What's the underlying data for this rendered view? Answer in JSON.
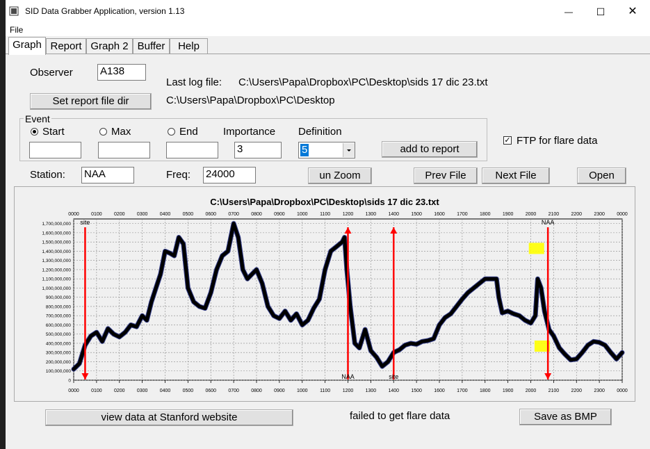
{
  "window": {
    "title": "SID Data Grabber Application, version 1.13",
    "minimize_glyph": "—",
    "maximize_glyph": "☐",
    "close_glyph": "✕",
    "icon": "app-icon"
  },
  "menu": {
    "file": "File"
  },
  "tabs": [
    {
      "label": "Graph",
      "active": true
    },
    {
      "label": "Report"
    },
    {
      "label": "Graph 2"
    },
    {
      "label": "Buffer"
    },
    {
      "label": "Help"
    }
  ],
  "observer": {
    "label": "Observer",
    "value": "A138"
  },
  "log": {
    "label": "Last log file:",
    "path": "C:\\Users\\Papa\\Dropbox\\PC\\Desktop\\sids 17 dic 23.txt",
    "dir": "C:\\Users\\Papa\\Dropbox\\PC\\Desktop"
  },
  "set_report_button": "Set report file dir",
  "event": {
    "legend": "Event",
    "start_label": "Start",
    "max_label": "Max",
    "end_label": "End",
    "importance_label": "Importance",
    "importance_value": "3",
    "definition_label": "Definition",
    "definition_value": "5",
    "add_button": "add to report",
    "selected": "start"
  },
  "ftp": {
    "label": "FTP for flare data",
    "checked": true
  },
  "station": {
    "label": "Station:",
    "value": "NAA"
  },
  "freq": {
    "label": "Freq:",
    "value": "24000"
  },
  "buttons": {
    "unzoom": "un Zoom",
    "prev": "Prev File",
    "next": "Next File",
    "open": "Open",
    "stanford": "view data at Stanford website",
    "save_bmp": "Save as BMP"
  },
  "status": "failed to get flare data",
  "chart_data": {
    "type": "line",
    "title": "C:\\Users\\Papa\\Dropbox\\PC\\Desktop\\sids 17 dic 23.txt",
    "x_ticks": [
      "0000",
      "0100",
      "0200",
      "0300",
      "0400",
      "0500",
      "0600",
      "0700",
      "0800",
      "0900",
      "1000",
      "1100",
      "1200",
      "1300",
      "1400",
      "1500",
      "1600",
      "1700",
      "1800",
      "1900",
      "2000",
      "2100",
      "2200",
      "2300",
      "0000"
    ],
    "y_ticks": [
      "0",
      "100,000,000",
      "200,000,000",
      "300,000,000",
      "400,000,000",
      "500,000,000",
      "600,000,000",
      "700,000,000",
      "800,000,000",
      "900,000,000",
      "1,000,000,000",
      "1,100,000,000",
      "1,200,000,000",
      "1,300,000,000",
      "1,400,000,000",
      "1,500,000,000",
      "1,600,000,000",
      "1,700,000,000"
    ],
    "xlim": [
      0,
      24
    ],
    "ylim": [
      0,
      1750000000
    ],
    "grid": true,
    "series": [
      {
        "color": "#000000",
        "points": [
          [
            0.0,
            120000000
          ],
          [
            0.25,
            180000000
          ],
          [
            0.5,
            380000000
          ],
          [
            0.75,
            480000000
          ],
          [
            1.0,
            520000000
          ],
          [
            1.25,
            420000000
          ],
          [
            1.5,
            560000000
          ],
          [
            1.75,
            500000000
          ],
          [
            2.0,
            470000000
          ],
          [
            2.25,
            520000000
          ],
          [
            2.5,
            600000000
          ],
          [
            2.75,
            580000000
          ],
          [
            3.0,
            700000000
          ],
          [
            3.2,
            650000000
          ],
          [
            3.4,
            850000000
          ],
          [
            3.6,
            1000000000
          ],
          [
            3.8,
            1150000000
          ],
          [
            4.0,
            1400000000
          ],
          [
            4.2,
            1380000000
          ],
          [
            4.4,
            1350000000
          ],
          [
            4.6,
            1550000000
          ],
          [
            4.8,
            1480000000
          ],
          [
            5.0,
            1000000000
          ],
          [
            5.25,
            850000000
          ],
          [
            5.5,
            800000000
          ],
          [
            5.75,
            780000000
          ],
          [
            6.0,
            950000000
          ],
          [
            6.25,
            1200000000
          ],
          [
            6.5,
            1350000000
          ],
          [
            6.75,
            1400000000
          ],
          [
            7.0,
            1700000000
          ],
          [
            7.2,
            1550000000
          ],
          [
            7.4,
            1200000000
          ],
          [
            7.6,
            1100000000
          ],
          [
            7.8,
            1150000000
          ],
          [
            8.0,
            1200000000
          ],
          [
            8.25,
            1050000000
          ],
          [
            8.5,
            800000000
          ],
          [
            8.75,
            700000000
          ],
          [
            9.0,
            670000000
          ],
          [
            9.25,
            750000000
          ],
          [
            9.5,
            650000000
          ],
          [
            9.75,
            720000000
          ],
          [
            10.0,
            600000000
          ],
          [
            10.25,
            650000000
          ],
          [
            10.5,
            780000000
          ],
          [
            10.75,
            880000000
          ],
          [
            11.0,
            1200000000
          ],
          [
            11.25,
            1400000000
          ],
          [
            11.5,
            1450000000
          ],
          [
            11.75,
            1500000000
          ],
          [
            11.85,
            1550000000
          ],
          [
            11.95,
            1200000000
          ],
          [
            12.1,
            800000000
          ],
          [
            12.3,
            400000000
          ],
          [
            12.5,
            350000000
          ],
          [
            12.75,
            550000000
          ],
          [
            13.0,
            320000000
          ],
          [
            13.25,
            250000000
          ],
          [
            13.5,
            150000000
          ],
          [
            13.75,
            200000000
          ],
          [
            14.0,
            300000000
          ],
          [
            14.25,
            330000000
          ],
          [
            14.5,
            380000000
          ],
          [
            14.75,
            400000000
          ],
          [
            15.0,
            390000000
          ],
          [
            15.25,
            420000000
          ],
          [
            15.5,
            430000000
          ],
          [
            15.75,
            450000000
          ],
          [
            16.0,
            600000000
          ],
          [
            16.25,
            680000000
          ],
          [
            16.5,
            720000000
          ],
          [
            16.75,
            800000000
          ],
          [
            17.0,
            880000000
          ],
          [
            17.25,
            950000000
          ],
          [
            17.5,
            1000000000
          ],
          [
            17.75,
            1050000000
          ],
          [
            18.0,
            1100000000
          ],
          [
            18.25,
            1100000000
          ],
          [
            18.5,
            1100000000
          ],
          [
            18.6,
            900000000
          ],
          [
            18.75,
            730000000
          ],
          [
            19.0,
            750000000
          ],
          [
            19.25,
            720000000
          ],
          [
            19.5,
            700000000
          ],
          [
            19.75,
            650000000
          ],
          [
            20.0,
            620000000
          ],
          [
            20.2,
            700000000
          ],
          [
            20.3,
            1100000000
          ],
          [
            20.45,
            1000000000
          ],
          [
            20.6,
            750000000
          ],
          [
            20.8,
            550000000
          ],
          [
            21.0,
            480000000
          ],
          [
            21.25,
            350000000
          ],
          [
            21.5,
            280000000
          ],
          [
            21.75,
            220000000
          ],
          [
            22.0,
            230000000
          ],
          [
            22.25,
            300000000
          ],
          [
            22.5,
            380000000
          ],
          [
            22.75,
            420000000
          ],
          [
            23.0,
            410000000
          ],
          [
            23.25,
            380000000
          ],
          [
            23.5,
            300000000
          ],
          [
            23.75,
            230000000
          ],
          [
            24.0,
            300000000
          ]
        ]
      }
    ],
    "markers": [
      {
        "x": 0.5,
        "direction": "down",
        "label": "site",
        "label_pos": "top"
      },
      {
        "x": 12.0,
        "direction": "up",
        "label": "NAA",
        "label_pos": "bottom"
      },
      {
        "x": 14.0,
        "direction": "up",
        "label": "site",
        "label_pos": "bottom"
      },
      {
        "x": 20.75,
        "direction": "down",
        "label": "NAA",
        "label_pos": "top"
      }
    ],
    "highlights": [
      {
        "x": 20.25,
        "y": 1430000000
      },
      {
        "x": 20.5,
        "y": 370000000
      }
    ],
    "highlight_color": "#ffff00",
    "marker_color": "#ff0000",
    "overlay_color": "#1f2a80"
  }
}
